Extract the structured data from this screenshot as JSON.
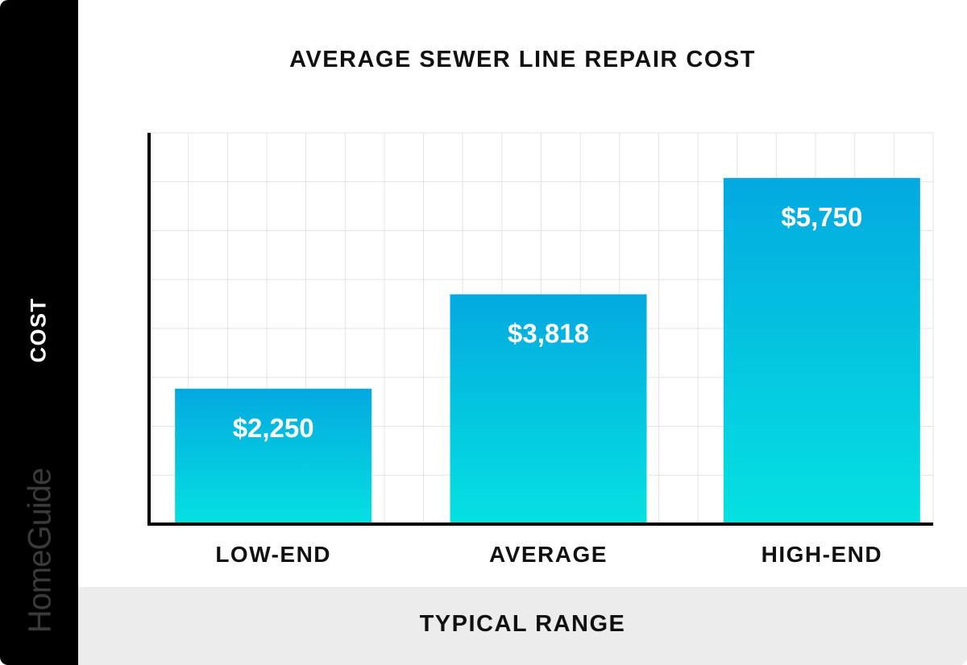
{
  "brand": {
    "name": "HomeGuide"
  },
  "colors": {
    "bar_top": "#03a9e0",
    "bar_bottom": "#05e1e1",
    "sidebar": "#000000",
    "footer": "#ececec",
    "grid": "#e3e3e3"
  },
  "chart_data": {
    "type": "bar",
    "title": "AVERAGE SEWER LINE REPAIR COST",
    "xlabel": "TYPICAL RANGE",
    "ylabel": "COST",
    "categories": [
      "LOW-END",
      "AVERAGE",
      "HIGH-END"
    ],
    "values": [
      2250,
      3818,
      5750
    ],
    "value_labels": [
      "$2,250",
      "$3,818",
      "$5,750"
    ],
    "ylim": [
      0,
      6500
    ],
    "grid": true,
    "y_tick_labels_shown": false
  }
}
